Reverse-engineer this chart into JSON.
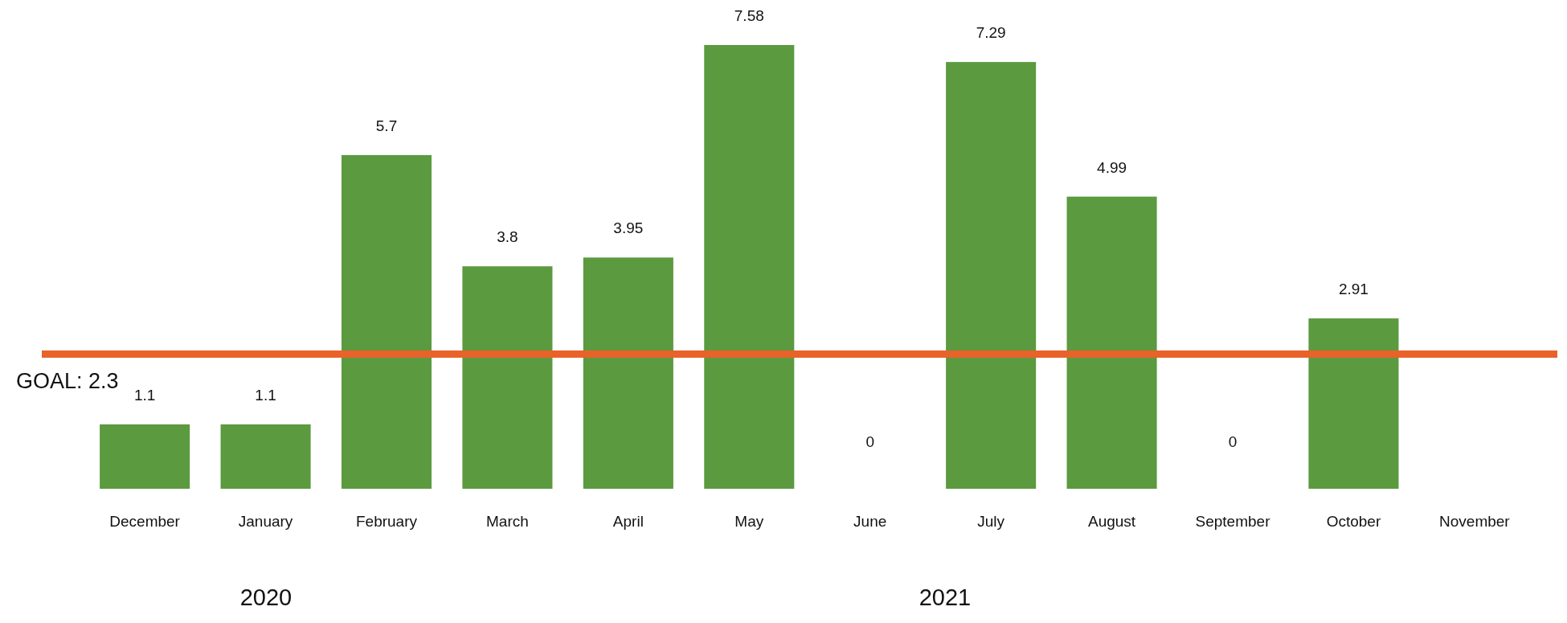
{
  "chart_data": {
    "type": "bar",
    "categories": [
      "December",
      "January",
      "February",
      "March",
      "April",
      "May",
      "June",
      "July",
      "August",
      "September",
      "October",
      "November"
    ],
    "values": [
      1.1,
      1.1,
      5.7,
      3.8,
      3.95,
      7.58,
      0,
      7.29,
      4.99,
      0,
      2.91,
      null
    ],
    "color": "#5b9a3f",
    "data_labels": true,
    "ref_lines": [
      {
        "axis": "y",
        "value": 2.3,
        "label": "GOAL: 2.3",
        "color": "#e8622a"
      }
    ],
    "annotations": [
      "2020",
      "2021"
    ]
  }
}
